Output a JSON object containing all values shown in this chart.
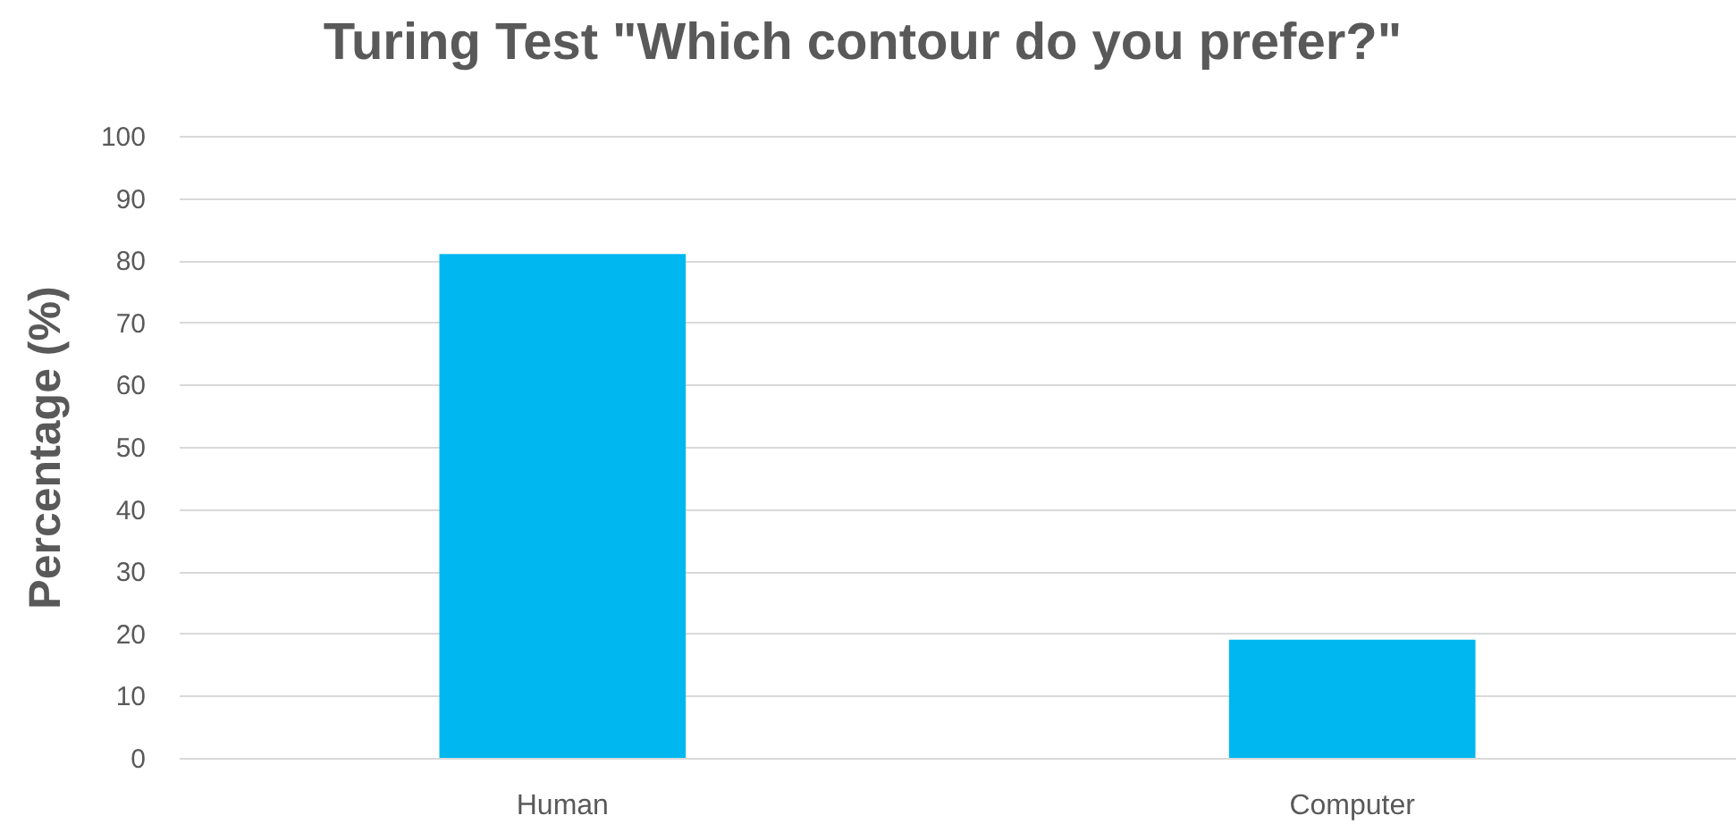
{
  "chart_data": {
    "type": "bar",
    "title": "Turing Test \"Which contour do you prefer?\"",
    "ylabel": "Percentage (%)",
    "categories": [
      "Human",
      "Computer"
    ],
    "values": [
      81,
      19
    ],
    "color": "#00b7f0",
    "ylim": [
      0,
      100
    ],
    "yticks": [
      0,
      10,
      20,
      30,
      40,
      50,
      60,
      70,
      80,
      90,
      100
    ],
    "grid": "y"
  }
}
